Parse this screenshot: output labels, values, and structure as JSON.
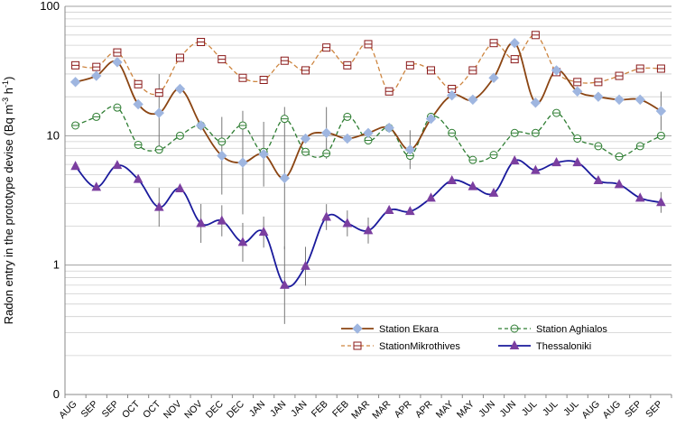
{
  "chart_data": {
    "type": "line",
    "ylabel_parts": [
      "Radon entry in the prototype devise (Bq m",
      "-3",
      " h",
      "-1",
      ")"
    ],
    "yscale": "log",
    "ylim": [
      0.1,
      100
    ],
    "y_ticks": [
      {
        "value": 100,
        "label": "100"
      },
      {
        "value": 10,
        "label": "10"
      },
      {
        "value": 1,
        "label": "1"
      },
      {
        "value": 0.1,
        "label": "0"
      }
    ],
    "grid": true,
    "legend_position": "bottom-right",
    "categories": [
      "AUG",
      "SEP",
      "SEP",
      "OCT",
      "OCT",
      "NOV",
      "NOV",
      "DEC",
      "DEC",
      "JAN",
      "JAN",
      "JAN",
      "FEB",
      "FEB",
      "MAR",
      "MAR",
      "APR",
      "APR",
      "MAY",
      "MAY",
      "JUN",
      "JUN",
      "JUL",
      "JUL",
      "JUL",
      "AUG",
      "AUG",
      "SEP",
      "SEP"
    ],
    "series": [
      {
        "name": "Station Ekara",
        "color": "#8b4513",
        "marker": "diamond",
        "marker_color": "#9fb6e0",
        "dash": false,
        "values": [
          26,
          29,
          37,
          17.5,
          15,
          23,
          12,
          7,
          6.2,
          7.2,
          4.7,
          9.5,
          10.5,
          9.5,
          10.5,
          11.5,
          7.8,
          13.5,
          20.5,
          19,
          28,
          52,
          18,
          32,
          22,
          20,
          19,
          19,
          15.5
        ],
        "errors": [
          0,
          0,
          0,
          0,
          0.3,
          0,
          0,
          0.3,
          0.4,
          0.25,
          0.55,
          0,
          0.2,
          0,
          0,
          0,
          0.15,
          0,
          0,
          0,
          0,
          0,
          0,
          0,
          0,
          0,
          0,
          0,
          0.15
        ]
      },
      {
        "name": "Station Aghialos",
        "color": "#2e7d32",
        "marker": "circle-open",
        "marker_color": "#2e7d32",
        "dash": true,
        "values": [
          12,
          14,
          16.5,
          8.5,
          7.8,
          10,
          12,
          9,
          12,
          7.5,
          13.5,
          7.5,
          7.3,
          14,
          9.2,
          11.5,
          7,
          14,
          10.5,
          6.5,
          7.1,
          10.5,
          10.5,
          15,
          9.5,
          8.3,
          6.9,
          8.3,
          10
        ],
        "errors": [
          0,
          0,
          0,
          0,
          0,
          0,
          0,
          0,
          0,
          0,
          0,
          0,
          0,
          0,
          0,
          0,
          0,
          0,
          0,
          0,
          0,
          0,
          0,
          0,
          0,
          0,
          0,
          0,
          0
        ]
      },
      {
        "name": "StationMikrothives",
        "color": "#cd853f",
        "marker": "square-open",
        "marker_color": "#8b1a1a",
        "dash": true,
        "values": [
          35,
          34,
          44,
          25,
          21.5,
          40,
          53,
          39,
          28,
          27,
          38,
          32,
          48,
          35,
          51,
          22,
          35,
          32,
          23,
          32,
          52,
          39,
          60,
          31,
          26,
          26,
          29,
          33,
          33
        ],
        "errors": [
          0,
          0,
          0,
          0,
          0,
          0,
          0,
          0,
          0,
          0,
          0,
          0,
          0,
          0,
          0,
          0,
          0,
          0,
          0,
          0,
          0,
          0,
          0,
          0,
          0,
          0,
          0,
          0,
          0
        ]
      },
      {
        "name": "Thessaloniki",
        "color": "#1a1a9c",
        "marker": "triangle",
        "marker_color": "#7b3fa0",
        "dash": false,
        "values": [
          5.8,
          4,
          5.9,
          4.6,
          2.8,
          3.9,
          2.1,
          2.2,
          1.5,
          1.8,
          0.7,
          0.98,
          2.35,
          2.1,
          1.85,
          2.65,
          2.6,
          3.3,
          4.5,
          4.05,
          3.6,
          6.4,
          5.4,
          6.2,
          6.2,
          4.5,
          4.2,
          3.3,
          3.05
        ],
        "errors": [
          0,
          0,
          0,
          0,
          0.15,
          0,
          0.15,
          0.12,
          0.15,
          0.12,
          0.3,
          0.15,
          0.1,
          0.1,
          0.1,
          0,
          0,
          0,
          0,
          0,
          0,
          0,
          0,
          0,
          0,
          0,
          0,
          0,
          0.08
        ]
      }
    ],
    "legend": [
      {
        "series": 0,
        "label": "Station Ekara"
      },
      {
        "series": 1,
        "label": "Station Aghialos"
      },
      {
        "series": 2,
        "label": "StationMikrothives"
      },
      {
        "series": 3,
        "label": "Thessaloniki"
      }
    ]
  }
}
